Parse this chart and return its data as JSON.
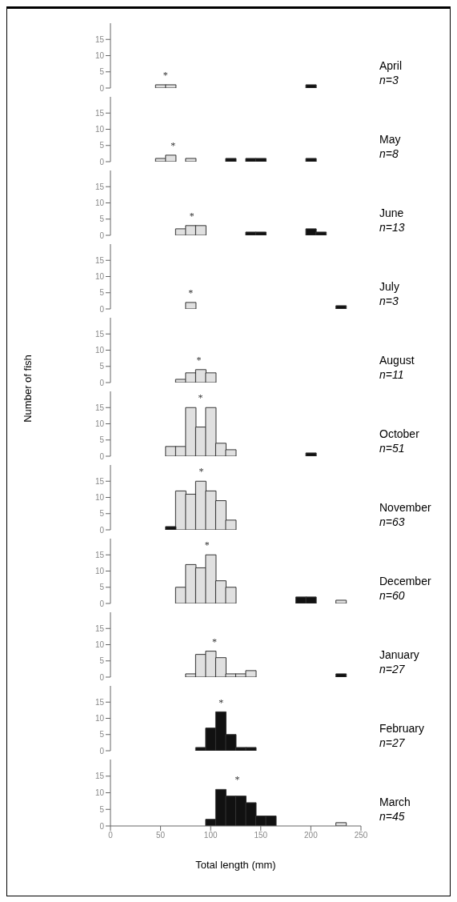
{
  "chart_data": [
    {
      "type": "histogram",
      "bins": [
        45,
        55,
        65,
        75,
        85,
        95,
        105,
        115,
        125,
        135,
        145,
        155,
        165,
        175,
        185,
        195,
        205,
        215,
        225,
        235,
        245
      ],
      "series": [
        {
          "color": "#e0e0e0",
          "values": [
            1,
            1,
            null,
            null,
            null,
            null,
            null,
            null,
            null,
            null,
            null,
            null,
            null,
            null,
            null,
            null,
            null,
            null,
            null,
            null
          ]
        },
        {
          "color": "#111111",
          "values": [
            null,
            null,
            null,
            null,
            null,
            null,
            null,
            null,
            null,
            null,
            null,
            null,
            null,
            null,
            null,
            1,
            null,
            null,
            null,
            null
          ]
        }
      ],
      "xlim": [
        0,
        250
      ],
      "xticks": [
        0,
        50,
        100,
        150,
        200,
        250
      ],
      "ylim": [
        0,
        20
      ],
      "yticks": [
        0,
        5,
        10,
        15
      ],
      "tick_labels": "y",
      "annotations": [
        "April",
        "n=3",
        "*"
      ]
    },
    {
      "type": "histogram",
      "bins": [
        45,
        55,
        65,
        75,
        85,
        95,
        105,
        115,
        125,
        135,
        145,
        155,
        165,
        175,
        185,
        195,
        205,
        215,
        225,
        235,
        245
      ],
      "series": [
        {
          "color": "#e0e0e0",
          "values": [
            1,
            2,
            null,
            1,
            null,
            null,
            null,
            null,
            null,
            null,
            null,
            null,
            null,
            null,
            null,
            null,
            null,
            null,
            null,
            null
          ]
        },
        {
          "color": "#111111",
          "values": [
            null,
            null,
            null,
            null,
            null,
            null,
            null,
            1,
            null,
            1,
            1,
            null,
            null,
            null,
            null,
            1,
            null,
            null,
            null,
            null
          ]
        }
      ],
      "xlim": [
        0,
        250
      ],
      "xticks": [
        0,
        50,
        100,
        150,
        200,
        250
      ],
      "ylim": [
        0,
        20
      ],
      "yticks": [
        0,
        5,
        10,
        15
      ],
      "tick_labels": "y",
      "annotations": [
        "May",
        "n=8",
        "*"
      ]
    },
    {
      "type": "histogram",
      "bins": [
        45,
        55,
        65,
        75,
        85,
        95,
        105,
        115,
        125,
        135,
        145,
        155,
        165,
        175,
        185,
        195,
        205,
        215,
        225,
        235,
        245
      ],
      "series": [
        {
          "color": "#e0e0e0",
          "values": [
            null,
            null,
            2,
            3,
            3,
            null,
            null,
            null,
            null,
            null,
            null,
            null,
            null,
            null,
            null,
            null,
            null,
            null,
            null,
            null
          ]
        },
        {
          "color": "#111111",
          "values": [
            null,
            null,
            null,
            null,
            null,
            null,
            null,
            null,
            null,
            1,
            1,
            null,
            null,
            null,
            null,
            2,
            1,
            null,
            null,
            null
          ]
        }
      ],
      "xlim": [
        0,
        250
      ],
      "xticks": [
        0,
        50,
        100,
        150,
        200,
        250
      ],
      "ylim": [
        0,
        20
      ],
      "yticks": [
        0,
        5,
        10,
        15
      ],
      "tick_labels": "y",
      "annotations": [
        "June",
        "n=13",
        "*"
      ]
    },
    {
      "type": "histogram",
      "bins": [
        45,
        55,
        65,
        75,
        85,
        95,
        105,
        115,
        125,
        135,
        145,
        155,
        165,
        175,
        185,
        195,
        205,
        215,
        225,
        235,
        245
      ],
      "series": [
        {
          "color": "#e0e0e0",
          "values": [
            null,
            null,
            null,
            2,
            null,
            null,
            null,
            null,
            null,
            null,
            null,
            null,
            null,
            null,
            null,
            null,
            null,
            null,
            null,
            null
          ]
        },
        {
          "color": "#111111",
          "values": [
            null,
            null,
            null,
            null,
            null,
            null,
            null,
            null,
            null,
            null,
            null,
            null,
            null,
            null,
            null,
            null,
            null,
            null,
            1,
            null
          ]
        }
      ],
      "xlim": [
        0,
        250
      ],
      "xticks": [
        0,
        50,
        100,
        150,
        200,
        250
      ],
      "ylim": [
        0,
        20
      ],
      "yticks": [
        0,
        5,
        10,
        15
      ],
      "tick_labels": "y",
      "annotations": [
        "July",
        "n=3",
        "*"
      ]
    },
    {
      "type": "histogram",
      "bins": [
        45,
        55,
        65,
        75,
        85,
        95,
        105,
        115,
        125,
        135,
        145,
        155,
        165,
        175,
        185,
        195,
        205,
        215,
        225,
        235,
        245
      ],
      "series": [
        {
          "color": "#e0e0e0",
          "values": [
            null,
            null,
            1,
            3,
            4,
            3,
            null,
            null,
            null,
            null,
            null,
            null,
            null,
            null,
            null,
            null,
            null,
            null,
            null,
            null
          ]
        }
      ],
      "xlim": [
        0,
        250
      ],
      "xticks": [
        0,
        50,
        100,
        150,
        200,
        250
      ],
      "ylim": [
        0,
        20
      ],
      "yticks": [
        0,
        5,
        10,
        15
      ],
      "tick_labels": "y",
      "annotations": [
        "August",
        "n=11",
        "*"
      ]
    },
    {
      "type": "histogram",
      "ylabel": "Number of fish",
      "bins": [
        45,
        55,
        65,
        75,
        85,
        95,
        105,
        115,
        125,
        135,
        145,
        155,
        165,
        175,
        185,
        195,
        205,
        215,
        225,
        235,
        245
      ],
      "series": [
        {
          "color": "#e0e0e0",
          "values": [
            null,
            3,
            3,
            15,
            9,
            15,
            4,
            2,
            null,
            null,
            null,
            null,
            null,
            null,
            null,
            null,
            null,
            null,
            null,
            null
          ]
        },
        {
          "color": "#111111",
          "values": [
            null,
            null,
            null,
            null,
            null,
            null,
            null,
            null,
            null,
            null,
            null,
            null,
            null,
            null,
            null,
            1,
            null,
            null,
            null,
            null
          ]
        }
      ],
      "xlim": [
        0,
        250
      ],
      "xticks": [
        0,
        50,
        100,
        150,
        200,
        250
      ],
      "ylim": [
        0,
        20
      ],
      "yticks": [
        0,
        5,
        10,
        15
      ],
      "tick_labels": "y",
      "annotations": [
        "October",
        "n=51",
        "*"
      ]
    },
    {
      "type": "histogram",
      "bins": [
        45,
        55,
        65,
        75,
        85,
        95,
        105,
        115,
        125,
        135,
        145,
        155,
        165,
        175,
        185,
        195,
        205,
        215,
        225,
        235,
        245
      ],
      "series": [
        {
          "color": "#e0e0e0",
          "values": [
            null,
            null,
            12,
            11,
            15,
            12,
            9,
            3,
            null,
            null,
            null,
            null,
            null,
            null,
            null,
            null,
            null,
            null,
            null,
            null
          ]
        },
        {
          "color": "#111111",
          "values": [
            null,
            1,
            null,
            null,
            null,
            null,
            null,
            null,
            null,
            null,
            null,
            null,
            null,
            null,
            null,
            null,
            null,
            null,
            null,
            null
          ]
        }
      ],
      "xlim": [
        0,
        250
      ],
      "xticks": [
        0,
        50,
        100,
        150,
        200,
        250
      ],
      "ylim": [
        0,
        20
      ],
      "yticks": [
        0,
        5,
        10,
        15
      ],
      "tick_labels": "y",
      "annotations": [
        "November",
        "n=63",
        "*"
      ]
    },
    {
      "type": "histogram",
      "bins": [
        45,
        55,
        65,
        75,
        85,
        95,
        105,
        115,
        125,
        135,
        145,
        155,
        165,
        175,
        185,
        195,
        205,
        215,
        225,
        235,
        245
      ],
      "series": [
        {
          "color": "#e0e0e0",
          "values": [
            null,
            null,
            5,
            12,
            11,
            15,
            7,
            5,
            null,
            null,
            null,
            null,
            null,
            null,
            null,
            null,
            null,
            null,
            1,
            null
          ]
        },
        {
          "color": "#111111",
          "values": [
            null,
            null,
            null,
            null,
            null,
            null,
            null,
            null,
            null,
            null,
            null,
            null,
            null,
            null,
            2,
            2,
            null,
            null,
            null,
            null
          ]
        }
      ],
      "xlim": [
        0,
        250
      ],
      "xticks": [
        0,
        50,
        100,
        150,
        200,
        250
      ],
      "ylim": [
        0,
        20
      ],
      "yticks": [
        0,
        5,
        10,
        15
      ],
      "tick_labels": "y",
      "annotations": [
        "December",
        "n=60",
        "*"
      ]
    },
    {
      "type": "histogram",
      "bins": [
        45,
        55,
        65,
        75,
        85,
        95,
        105,
        115,
        125,
        135,
        145,
        155,
        165,
        175,
        185,
        195,
        205,
        215,
        225,
        235,
        245
      ],
      "series": [
        {
          "color": "#e0e0e0",
          "values": [
            null,
            null,
            null,
            1,
            7,
            8,
            6,
            1,
            1,
            2,
            null,
            null,
            null,
            null,
            null,
            null,
            null,
            null,
            null,
            null
          ]
        },
        {
          "color": "#111111",
          "values": [
            null,
            null,
            null,
            null,
            null,
            null,
            null,
            null,
            null,
            null,
            null,
            null,
            null,
            null,
            null,
            null,
            null,
            null,
            1,
            null
          ]
        }
      ],
      "xlim": [
        0,
        250
      ],
      "xticks": [
        0,
        50,
        100,
        150,
        200,
        250
      ],
      "ylim": [
        0,
        20
      ],
      "yticks": [
        0,
        5,
        10,
        15
      ],
      "tick_labels": "y",
      "annotations": [
        "January",
        "n=27",
        "*"
      ]
    },
    {
      "type": "histogram",
      "bins": [
        45,
        55,
        65,
        75,
        85,
        95,
        105,
        115,
        125,
        135,
        145,
        155,
        165,
        175,
        185,
        195,
        205,
        215,
        225,
        235,
        245
      ],
      "series": [
        {
          "color": "#111111",
          "values": [
            null,
            null,
            null,
            null,
            1,
            7,
            12,
            5,
            1,
            1,
            null,
            null,
            null,
            null,
            null,
            null,
            null,
            null,
            null,
            null
          ]
        }
      ],
      "xlim": [
        0,
        250
      ],
      "xticks": [
        0,
        50,
        100,
        150,
        200,
        250
      ],
      "ylim": [
        0,
        20
      ],
      "yticks": [
        0,
        5,
        10,
        15
      ],
      "tick_labels": "y",
      "annotations": [
        "February",
        "n=27",
        "*"
      ]
    },
    {
      "type": "histogram",
      "xlabel": "Total length (mm)",
      "bins": [
        45,
        55,
        65,
        75,
        85,
        95,
        105,
        115,
        125,
        135,
        145,
        155,
        165,
        175,
        185,
        195,
        205,
        215,
        225,
        235,
        245
      ],
      "series": [
        {
          "color": "#e0e0e0",
          "values": [
            null,
            null,
            null,
            null,
            null,
            null,
            null,
            null,
            null,
            null,
            null,
            null,
            null,
            null,
            null,
            null,
            null,
            null,
            1,
            null
          ]
        },
        {
          "color": "#111111",
          "values": [
            null,
            null,
            null,
            null,
            null,
            2,
            11,
            9,
            9,
            7,
            3,
            3,
            null,
            null,
            null,
            null,
            null,
            null,
            null,
            null
          ]
        }
      ],
      "xlim": [
        0,
        250
      ],
      "xticks": [
        0,
        50,
        100,
        150,
        200,
        250
      ],
      "ylim": [
        0,
        20
      ],
      "yticks": [
        0,
        5,
        10,
        15
      ],
      "annotations": [
        "March",
        "n=45",
        "*"
      ]
    }
  ]
}
